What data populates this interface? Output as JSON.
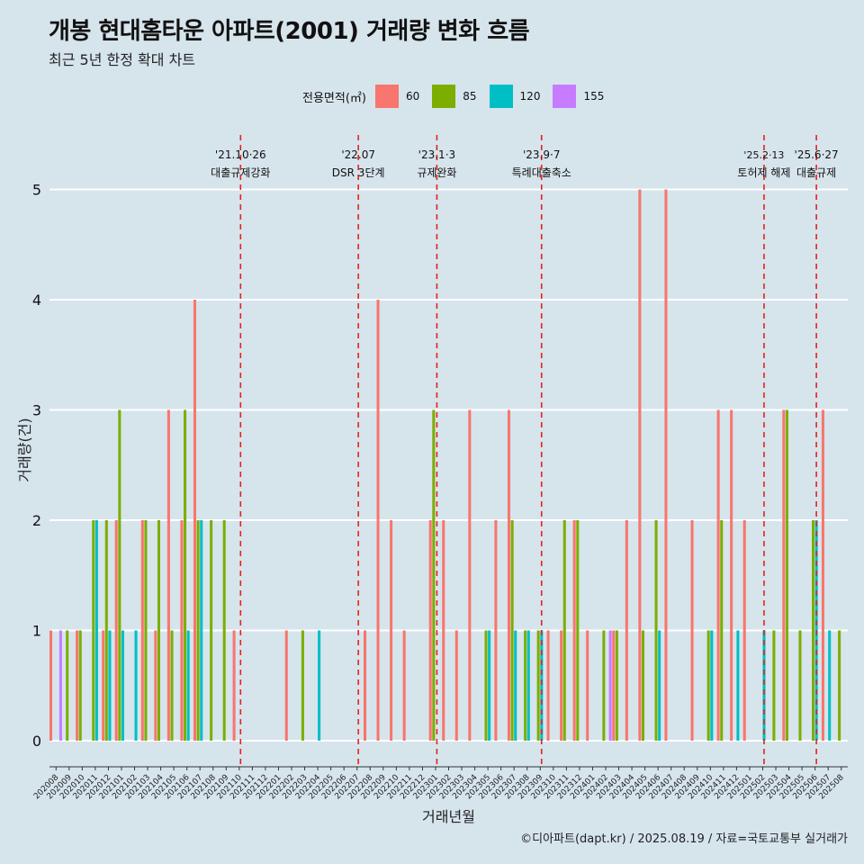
{
  "title": "개봉 현대홈타운 아파트(2001) 거래량 변화 흐름",
  "subtitle": "최근 5년 한정 확대 차트",
  "caption": "©디아파트(dapt.kr) / 2025.08.19 / 자료=국토교통부 실거래가",
  "colors": {
    "60": "#f8766d",
    "85": "#7cae00",
    "120": "#00bfc4",
    "155": "#c77cff",
    "vline": "#e8201c",
    "grid": "#ffffff",
    "bg": "#d6e4ec"
  },
  "chart_data": {
    "type": "bar",
    "xlabel": "거래년월",
    "ylabel": "거래량(건)",
    "ylim": [
      0,
      5
    ],
    "yticks": [
      0,
      1,
      2,
      3,
      4,
      5
    ],
    "legend": {
      "title": "전용면적(㎡)",
      "position": "top",
      "entries": [
        "60",
        "85",
        "120",
        "155"
      ]
    },
    "categories": [
      "202008",
      "202009",
      "202010",
      "202011",
      "202012",
      "202101",
      "202102",
      "202103",
      "202104",
      "202105",
      "202106",
      "202107",
      "202108",
      "202109",
      "202110",
      "202111",
      "202112",
      "202201",
      "202202",
      "202203",
      "202204",
      "202205",
      "202206",
      "202207",
      "202208",
      "202209",
      "202210",
      "202211",
      "202212",
      "202301",
      "202302",
      "202303",
      "202304",
      "202305",
      "202306",
      "202307",
      "202308",
      "202309",
      "202310",
      "202311",
      "202312",
      "202401",
      "202402",
      "202403",
      "202404",
      "202405",
      "202406",
      "202407",
      "202408",
      "202409",
      "202410",
      "202411",
      "202412",
      "202501",
      "202502",
      "202503",
      "202504",
      "202505",
      "202506",
      "202507",
      "202508"
    ],
    "series": [
      {
        "name": "60",
        "values": [
          1,
          0,
          1,
          0,
          1,
          2,
          0,
          2,
          1,
          3,
          2,
          4,
          0,
          0,
          1,
          0,
          0,
          0,
          1,
          0,
          0,
          0,
          0,
          0,
          1,
          4,
          2,
          1,
          0,
          2,
          2,
          1,
          3,
          0,
          2,
          3,
          0,
          0,
          1,
          1,
          2,
          1,
          0,
          1,
          2,
          5,
          0,
          5,
          0,
          2,
          0,
          3,
          3,
          2,
          0,
          0,
          3,
          0,
          0,
          3,
          0
        ]
      },
      {
        "name": "85",
        "values": [
          0,
          1,
          1,
          2,
          2,
          3,
          0,
          2,
          2,
          1,
          3,
          2,
          2,
          2,
          0,
          0,
          0,
          0,
          0,
          1,
          0,
          0,
          0,
          0,
          0,
          0,
          0,
          0,
          0,
          3,
          0,
          0,
          0,
          1,
          0,
          2,
          1,
          1,
          0,
          2,
          2,
          0,
          1,
          1,
          0,
          1,
          2,
          0,
          0,
          0,
          1,
          2,
          0,
          0,
          0,
          1,
          3,
          1,
          2,
          0,
          1
        ]
      },
      {
        "name": "120",
        "values": [
          0,
          0,
          0,
          2,
          1,
          1,
          1,
          0,
          0,
          0,
          1,
          2,
          0,
          0,
          0,
          0,
          0,
          0,
          0,
          0,
          1,
          0,
          0,
          0,
          0,
          0,
          0,
          0,
          0,
          0,
          0,
          0,
          0,
          1,
          0,
          1,
          1,
          1,
          0,
          0,
          0,
          0,
          0,
          0,
          0,
          0,
          1,
          0,
          0,
          0,
          1,
          0,
          1,
          0,
          1,
          0,
          0,
          0,
          2,
          1,
          0
        ]
      },
      {
        "name": "155",
        "values": [
          1,
          0,
          0,
          0,
          0,
          0,
          0,
          0,
          0,
          0,
          0,
          0,
          0,
          0,
          0,
          0,
          0,
          0,
          0,
          0,
          0,
          0,
          0,
          0,
          0,
          0,
          0,
          0,
          0,
          0,
          0,
          0,
          0,
          0,
          0,
          0,
          0,
          0,
          0,
          0,
          0,
          0,
          1,
          0,
          0,
          0,
          0,
          0,
          0,
          0,
          0,
          0,
          0,
          0,
          0,
          0,
          0,
          0,
          0,
          0,
          0
        ]
      }
    ],
    "events": [
      {
        "date": "'21.10·26",
        "label": "대출규제강화",
        "x_index": 14.6
      },
      {
        "date": "'22.07",
        "label": "DSR 3단계",
        "x_index": 23.6
      },
      {
        "date": "'23.1·3",
        "label": "규제완화",
        "x_index": 29.6
      },
      {
        "date": "'23.9·7",
        "label": "특례대출축소",
        "x_index": 37.6
      },
      {
        "date": "'25.2·13",
        "label": "토허제 해제",
        "x_index": 54.6
      },
      {
        "date": "'25.6·27",
        "label": "대출규제",
        "x_index": 58.6
      }
    ]
  }
}
